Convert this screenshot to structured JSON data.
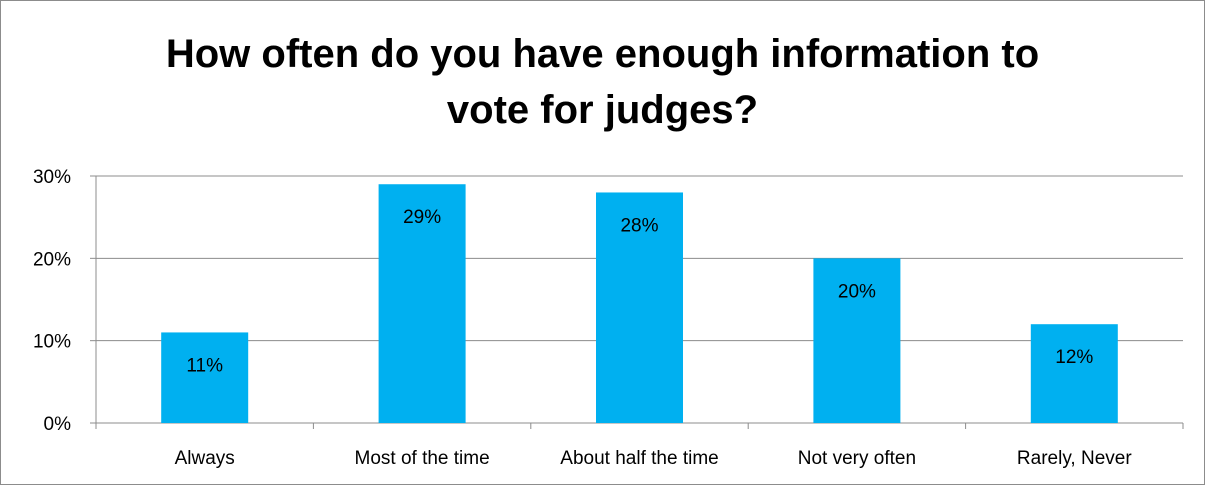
{
  "chart_data": {
    "type": "bar",
    "title_lines": [
      "How often do you have enough information to",
      "vote for judges?"
    ],
    "categories": [
      "Always",
      "Most of the time",
      "About half the time",
      "Not very often",
      "Rarely, Never"
    ],
    "values": [
      11,
      29,
      28,
      20,
      12
    ],
    "data_labels": [
      "11%",
      "29%",
      "28%",
      "20%",
      "12%"
    ],
    "y_ticks": [
      0,
      10,
      20,
      30
    ],
    "y_tick_labels": [
      "0%",
      "10%",
      "20%",
      "30%"
    ],
    "ylim": [
      0,
      30
    ],
    "grid": true,
    "legend": false,
    "colors": {
      "bar": "#00b0f0",
      "grid": "#8c8c8c",
      "axis": "#8c8c8c"
    }
  }
}
